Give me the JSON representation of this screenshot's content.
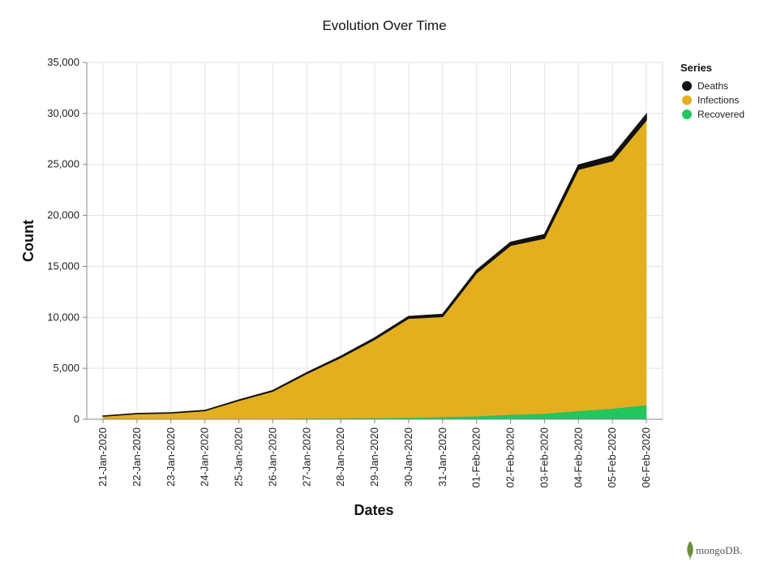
{
  "chart_data": {
    "type": "area",
    "stacked": true,
    "title": "Evolution Over Time",
    "xlabel": "Dates",
    "ylabel": "Count",
    "ylim": [
      0,
      35000
    ],
    "y_ticks": [
      "0",
      "5,000",
      "10,000",
      "15,000",
      "20,000",
      "25,000",
      "30,000",
      "35,000"
    ],
    "y_tick_values": [
      0,
      5000,
      10000,
      15000,
      20000,
      25000,
      30000,
      35000
    ],
    "grid": true,
    "legend_title": "Series",
    "legend_position": "right",
    "categories": [
      "21-Jan-2020",
      "22-Jan-2020",
      "23-Jan-2020",
      "24-Jan-2020",
      "25-Jan-2020",
      "26-Jan-2020",
      "27-Jan-2020",
      "28-Jan-2020",
      "29-Jan-2020",
      "30-Jan-2020",
      "31-Jan-2020",
      "01-Feb-2020",
      "02-Feb-2020",
      "03-Feb-2020",
      "04-Feb-2020",
      "05-Feb-2020",
      "06-Feb-2020"
    ],
    "series": [
      {
        "name": "Recovered",
        "color": "#21c65f",
        "values": [
          30,
          30,
          30,
          40,
          50,
          60,
          90,
          110,
          140,
          160,
          230,
          300,
          460,
          560,
          820,
          1050,
          1400
        ]
      },
      {
        "name": "Infections",
        "color": "#e3af1f",
        "values": [
          280,
          520,
          590,
          800,
          1800,
          2700,
          4400,
          5950,
          7700,
          9750,
          9850,
          14050,
          16600,
          17200,
          23700,
          24300,
          27950
        ]
      },
      {
        "name": "Deaths",
        "color": "#111111",
        "values": [
          10,
          20,
          20,
          30,
          40,
          60,
          80,
          110,
          140,
          170,
          210,
          260,
          300,
          360,
          420,
          490,
          560
        ]
      }
    ],
    "legend_order": [
      "Deaths",
      "Infections",
      "Recovered"
    ]
  },
  "watermark": {
    "text": "mongoDB."
  }
}
